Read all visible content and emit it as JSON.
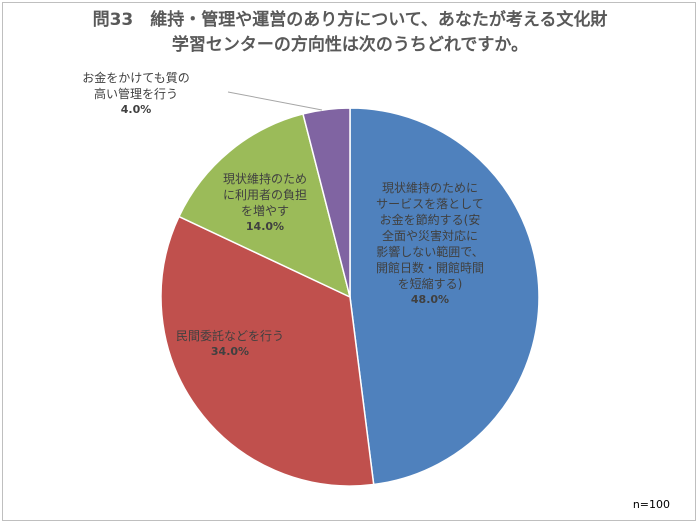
{
  "title": {
    "line1": "問33　維持・管理や運営のあり方について、あなたが考える文化財",
    "line2": "学習センターの方向性は次のうちどれですか。"
  },
  "note": "n=100",
  "chart_data": {
    "type": "pie",
    "title": "問33　維持・管理や運営のあり方について、あなたが考える文化財学習センターの方向性は次のうちどれですか。",
    "categories": [
      "現状維持のためにサービスを落としてお金を節約する(安全面や災害対応に影響しない範囲で、開館日数・開館時間を短縮する)",
      "民間委託などを行う",
      "現状維持のために利用者の負担を増やす",
      "お金をかけても質の高い管理を行う"
    ],
    "values": [
      48.0,
      34.0,
      14.0,
      4.0
    ],
    "colors": [
      "#4f81bd",
      "#c0504d",
      "#9bbb59",
      "#8064a2"
    ],
    "legend": "none",
    "labels": [
      {
        "lines": [
          "現状維持のために",
          "サービスを落として",
          "お金を節約する(安",
          "全面や災害対応に",
          "影響しない範囲で、",
          "開館日数・開館時間",
          "を短縮する)"
        ],
        "pct": "48.0%"
      },
      {
        "lines": [
          "民間委託などを行う"
        ],
        "pct": "34.0%"
      },
      {
        "lines": [
          "現状維持のため",
          "に利用者の負担",
          "を増やす"
        ],
        "pct": "14.0%"
      },
      {
        "lines": [
          "お金をかけても質の",
          "高い管理を行う"
        ],
        "pct": "4.0%"
      }
    ]
  }
}
